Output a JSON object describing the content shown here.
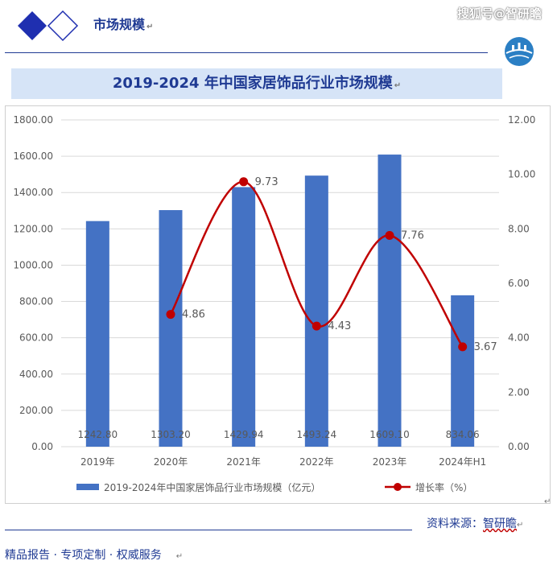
{
  "header": {
    "section_title": "市场规模",
    "watermark": "搜狐号@智研瞻"
  },
  "report_title": "2019-2024 年中国家居饰品行业市场规模",
  "chart_data": {
    "type": "bar+line",
    "title": "2019-2024 年中国家居饰品行业市场规模",
    "categories": [
      "2019年",
      "2020年",
      "2021年",
      "2022年",
      "2023年",
      "2024年H1"
    ],
    "series": [
      {
        "name": "2019-2024年中国家居饰品行业市场规模（亿元）",
        "type": "bar",
        "axis": "left",
        "color": "#4472c4",
        "values": [
          1242.8,
          1303.2,
          1429.94,
          1493.24,
          1609.1,
          834.06
        ],
        "labels": [
          "1242.80",
          "1303.20",
          "1429.94",
          "1493.24",
          "1609.10",
          "834.06"
        ]
      },
      {
        "name": "增长率（%）",
        "type": "line",
        "axis": "right",
        "color": "#c00000",
        "values": [
          null,
          4.86,
          9.73,
          4.43,
          7.76,
          3.67
        ],
        "labels": [
          "",
          "4.86",
          "9.73",
          "4.43",
          "7.76",
          "3.67"
        ]
      }
    ],
    "left_axis": {
      "min": 0,
      "max": 1800,
      "ticks": [
        "0.00",
        "200.00",
        "400.00",
        "600.00",
        "800.00",
        "1000.00",
        "1200.00",
        "1400.00",
        "1600.00",
        "1800.00"
      ]
    },
    "right_axis": {
      "min": 0,
      "max": 12,
      "ticks": [
        "0.00",
        "2.00",
        "4.00",
        "6.00",
        "8.00",
        "10.00",
        "12.00"
      ]
    },
    "grid": true,
    "legend_position": "bottom"
  },
  "source_label": "资料来源：",
  "source_name": "智研瞻",
  "footer_text": "精品报告 ·  专项定制 · 权威服务",
  "colors": {
    "accent": "#1f3a93",
    "title_bg": "#d6e4f7",
    "bar": "#4472c4",
    "line": "#c00000"
  }
}
